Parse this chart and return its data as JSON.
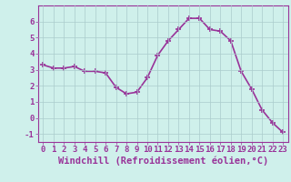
{
  "x": [
    0,
    1,
    2,
    3,
    4,
    5,
    6,
    7,
    8,
    9,
    10,
    11,
    12,
    13,
    14,
    15,
    16,
    17,
    18,
    19,
    20,
    21,
    22,
    23
  ],
  "y": [
    3.3,
    3.1,
    3.1,
    3.2,
    2.9,
    2.9,
    2.8,
    1.9,
    1.5,
    1.6,
    2.5,
    3.9,
    4.8,
    5.5,
    6.2,
    6.2,
    5.5,
    5.4,
    4.8,
    2.9,
    1.8,
    0.5,
    -0.3,
    -0.9
  ],
  "line_color": "#993399",
  "marker": "+",
  "marker_size": 4,
  "bg_color": "#cff0eb",
  "grid_color": "#aacccc",
  "xlabel": "Windchill (Refroidissement éolien,°C)",
  "xlim": [
    -0.5,
    23.5
  ],
  "ylim": [
    -1.5,
    7.0
  ],
  "yticks": [
    -1,
    0,
    1,
    2,
    3,
    4,
    5,
    6
  ],
  "xticks": [
    0,
    1,
    2,
    3,
    4,
    5,
    6,
    7,
    8,
    9,
    10,
    11,
    12,
    13,
    14,
    15,
    16,
    17,
    18,
    19,
    20,
    21,
    22,
    23
  ],
  "tick_color": "#993399",
  "label_color": "#993399",
  "spine_color": "#993399",
  "xlabel_fontsize": 7.5,
  "tick_fontsize": 6.5,
  "linewidth": 1.2
}
